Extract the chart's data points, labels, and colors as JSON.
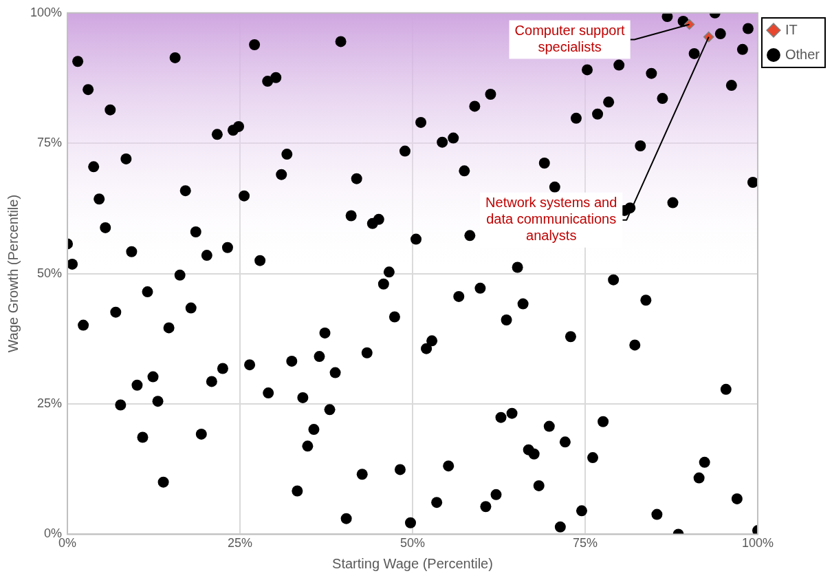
{
  "chart_data": {
    "type": "scatter",
    "xlabel": "Starting Wage (Percentile)",
    "ylabel": "Wage Growth (Percentile)",
    "xlim": [
      0,
      100
    ],
    "ylim": [
      0,
      100
    ],
    "xticks": [
      {
        "value": 0,
        "label": "0%"
      },
      {
        "value": 25,
        "label": "25%"
      },
      {
        "value": 50,
        "label": "50%"
      },
      {
        "value": 75,
        "label": "75%"
      },
      {
        "value": 100,
        "label": "100%"
      }
    ],
    "yticks": [
      {
        "value": 0,
        "label": "0%"
      },
      {
        "value": 25,
        "label": "25%"
      },
      {
        "value": 50,
        "label": "50%"
      },
      {
        "value": 75,
        "label": "75%"
      },
      {
        "value": 100,
        "label": "100%"
      }
    ],
    "grid": true,
    "legend": "top right",
    "bands": [
      {
        "axis": "y",
        "from": 50,
        "to": 100,
        "color": "#cfa6e0"
      }
    ],
    "annotations": [
      {
        "text": "Computer support specialists",
        "x": 90.1,
        "y": 97.8
      },
      {
        "text": "Network systems and data communications analysts",
        "x": 92.9,
        "y": 95.4
      }
    ],
    "series": [
      {
        "name": "IT",
        "color": "#e8472e",
        "marker": "diamond",
        "x": [
          90.1,
          92.9
        ],
        "values": [
          97.8,
          95.4
        ]
      },
      {
        "name": "Other",
        "color": "#000000",
        "marker": "circle",
        "x": [
          0,
          0.7,
          1.5,
          2.3,
          3.0,
          3.8,
          4.6,
          5.5,
          6.2,
          7.0,
          7.7,
          8.5,
          9.3,
          10.1,
          10.9,
          11.6,
          12.4,
          13.1,
          13.9,
          14.7,
          15.6,
          16.3,
          17.1,
          17.9,
          18.6,
          19.4,
          20.2,
          20.9,
          21.7,
          22.5,
          23.2,
          24.0,
          24.8,
          25.6,
          26.4,
          27.1,
          27.9,
          29.0,
          29.1,
          30.2,
          31.0,
          31.8,
          32.5,
          33.3,
          34.1,
          34.8,
          35.7,
          36.5,
          37.3,
          38.0,
          38.8,
          39.6,
          40.4,
          41.1,
          41.9,
          42.7,
          43.4,
          44.2,
          45.1,
          45.8,
          46.6,
          47.4,
          48.2,
          48.9,
          49.7,
          50.5,
          51.2,
          52.0,
          52.8,
          53.5,
          54.3,
          55.2,
          55.9,
          56.7,
          57.5,
          58.3,
          59.0,
          59.8,
          60.6,
          61.3,
          62.1,
          62.8,
          63.6,
          64.4,
          65.2,
          66.0,
          66.8,
          67.6,
          68.3,
          69.1,
          69.8,
          70.6,
          71.4,
          72.1,
          72.9,
          73.7,
          74.5,
          75.3,
          76.1,
          76.8,
          77.6,
          78.4,
          79.1,
          79.9,
          80.7,
          81.5,
          82.2,
          83.0,
          83.8,
          84.6,
          85.4,
          86.2,
          86.9,
          87.7,
          88.5,
          89.2,
          90.8,
          91.5,
          92.3,
          93.8,
          94.6,
          95.4,
          96.2,
          97.0,
          97.8,
          98.6,
          99.3,
          100
        ],
        "values": [
          55.7,
          51.8,
          90.7,
          40.1,
          85.3,
          70.5,
          64.3,
          58.8,
          81.4,
          42.6,
          24.8,
          72.0,
          54.2,
          28.6,
          18.6,
          46.5,
          30.2,
          25.5,
          10.0,
          39.6,
          91.4,
          49.7,
          65.9,
          43.4,
          58.0,
          19.2,
          53.5,
          29.3,
          76.7,
          31.8,
          55.0,
          77.5,
          78.2,
          64.9,
          32.5,
          93.9,
          52.5,
          86.9,
          27.1,
          87.6,
          69.0,
          72.9,
          33.2,
          8.3,
          26.2,
          16.9,
          20.1,
          34.1,
          38.6,
          23.9,
          31.0,
          94.5,
          3.0,
          61.1,
          68.2,
          11.5,
          34.8,
          59.6,
          60.4,
          48.0,
          50.3,
          41.7,
          12.4,
          73.5,
          2.2,
          56.6,
          79.0,
          35.6,
          37.1,
          6.1,
          75.2,
          13.1,
          76.0,
          45.6,
          69.7,
          57.3,
          82.1,
          47.2,
          5.3,
          84.4,
          7.6,
          22.4,
          41.1,
          23.2,
          51.2,
          44.2,
          16.2,
          15.4,
          9.3,
          71.2,
          20.7,
          66.6,
          1.4,
          17.7,
          37.9,
          79.8,
          4.5,
          89.1,
          14.7,
          80.6,
          21.6,
          82.9,
          48.8,
          90.0,
          62.1,
          62.6,
          36.3,
          74.5,
          44.9,
          88.4,
          3.8,
          83.6,
          99.3,
          63.6,
          0,
          98.4,
          92.2,
          10.8,
          13.8,
          100,
          96.0,
          27.8,
          86.1,
          6.8,
          93.0,
          97.0,
          67.5,
          0.7
        ]
      }
    ]
  }
}
